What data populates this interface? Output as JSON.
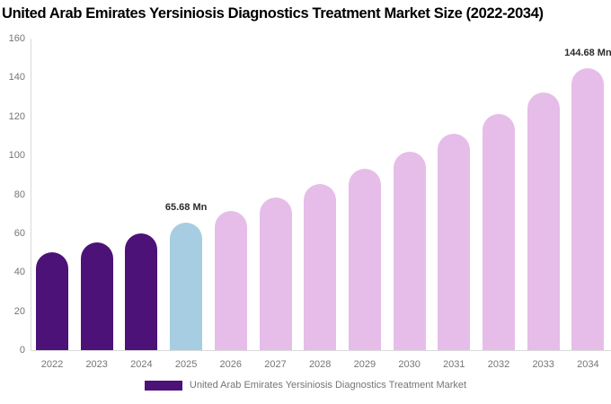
{
  "title": "United Arab Emirates Yersiniosis Diagnostics Treatment Market Size (2022-2034)",
  "chart_data": {
    "type": "bar",
    "title": "United Arab Emirates Yersiniosis Diagnostics Treatment Market Size (2022-2034)",
    "xlabel": "",
    "ylabel": "",
    "unit": "Mn",
    "categories": [
      "2022",
      "2023",
      "2024",
      "2025",
      "2026",
      "2027",
      "2028",
      "2029",
      "2030",
      "2031",
      "2032",
      "2033",
      "2034"
    ],
    "values": [
      50.48,
      55.11,
      60.16,
      65.68,
      71.7,
      78.28,
      85.46,
      93.29,
      101.85,
      111.19,
      121.38,
      132.51,
      144.68
    ],
    "bar_roles": [
      "historical",
      "historical",
      "historical",
      "current",
      "forecast",
      "forecast",
      "forecast",
      "forecast",
      "forecast",
      "forecast",
      "forecast",
      "forecast",
      "forecast"
    ],
    "palette": {
      "historical": "#4C1277",
      "current": "#A6CDE2",
      "forecast": "#E6BDE8"
    },
    "axis_color": "#dadada",
    "tick_text_color": "#757575",
    "ylim": [
      0,
      160
    ],
    "yticks": [
      0,
      20,
      40,
      60,
      80,
      100,
      120,
      140,
      160
    ],
    "grid": false,
    "annotations": [
      {
        "index": 3,
        "text": "65.68 Mn"
      },
      {
        "index": 12,
        "text": "144.68 Mn"
      }
    ],
    "legend_position": "bottom",
    "legend": [
      {
        "label": "United Arab Emirates Yersiniosis Diagnostics Treatment Market",
        "color": "#4C1277"
      }
    ]
  }
}
